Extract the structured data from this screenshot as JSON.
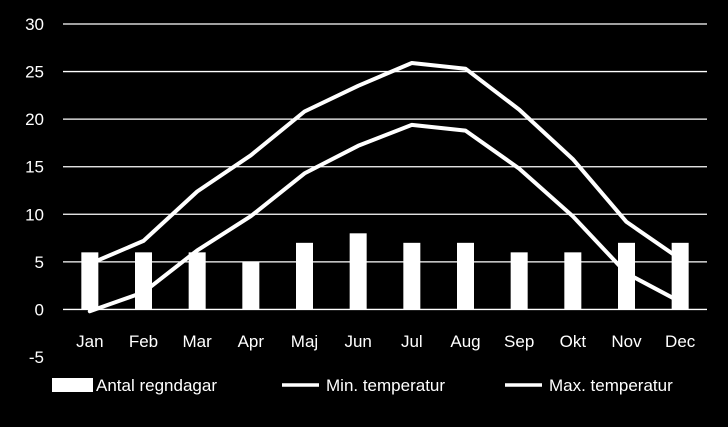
{
  "chart_data": {
    "type": "bar",
    "categories": [
      "Jan",
      "Feb",
      "Mar",
      "Apr",
      "Maj",
      "Jun",
      "Jul",
      "Aug",
      "Sep",
      "Okt",
      "Nov",
      "Dec"
    ],
    "series": [
      {
        "name": "Antal regndagar",
        "type": "bar",
        "values": [
          6,
          6,
          6,
          5,
          7,
          8,
          7,
          7,
          6,
          6,
          7,
          7
        ]
      },
      {
        "name": "Min. temperatur",
        "type": "line",
        "values": [
          -0.2,
          1.8,
          6.2,
          9.8,
          14.3,
          17.2,
          19.4,
          18.8,
          14.8,
          9.8,
          3.8,
          0.8
        ]
      },
      {
        "name": "Max. temperatur",
        "type": "line",
        "values": [
          4.8,
          7.2,
          12.4,
          16.2,
          20.8,
          23.5,
          25.9,
          25.3,
          21.0,
          15.8,
          9.2,
          5.3
        ]
      }
    ],
    "yticks": [
      "-5",
      "0",
      "5",
      "10",
      "15",
      "20",
      "25",
      "30"
    ],
    "ylim": [
      -5,
      30
    ],
    "grid": true,
    "legend": "bottom",
    "colors": {
      "background": "#000000",
      "foreground": "#ffffff"
    }
  }
}
